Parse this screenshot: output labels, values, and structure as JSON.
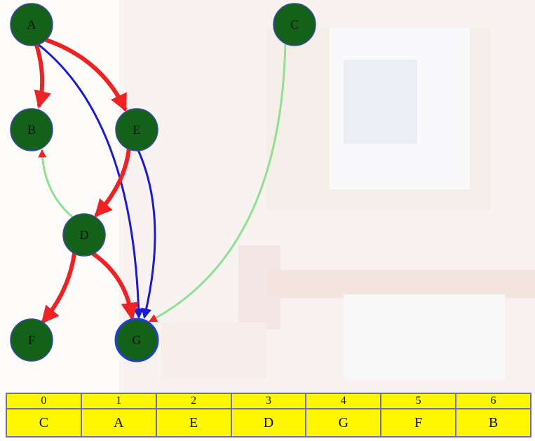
{
  "colors": {
    "node_fill": "#14621a",
    "node_stroke": "#3a4aa8",
    "tree_edge": "#ee2222",
    "forward_edge": "#1a1ad0",
    "other_edge": "#8fe08f",
    "table_fill": "#fff700",
    "table_border": "#6f6fa8"
  },
  "graph": {
    "nodes": [
      {
        "id": "A",
        "label": "A"
      },
      {
        "id": "C",
        "label": "C"
      },
      {
        "id": "B",
        "label": "B"
      },
      {
        "id": "E",
        "label": "E"
      },
      {
        "id": "D",
        "label": "D"
      },
      {
        "id": "F",
        "label": "F"
      },
      {
        "id": "G",
        "label": "G",
        "highlighted": true
      }
    ],
    "edges": [
      {
        "from": "A",
        "to": "B",
        "kind": "tree"
      },
      {
        "from": "A",
        "to": "E",
        "kind": "tree"
      },
      {
        "from": "E",
        "to": "D",
        "kind": "tree"
      },
      {
        "from": "D",
        "to": "F",
        "kind": "tree"
      },
      {
        "from": "D",
        "to": "G",
        "kind": "tree"
      },
      {
        "from": "A",
        "to": "G",
        "kind": "forward"
      },
      {
        "from": "E",
        "to": "G",
        "kind": "forward"
      },
      {
        "from": "D",
        "to": "B",
        "kind": "other"
      },
      {
        "from": "C",
        "to": "G",
        "kind": "other"
      }
    ]
  },
  "order_table": {
    "indices": [
      "0",
      "1",
      "2",
      "3",
      "4",
      "5",
      "6"
    ],
    "values": [
      "C",
      "A",
      "E",
      "D",
      "G",
      "F",
      "B"
    ]
  }
}
